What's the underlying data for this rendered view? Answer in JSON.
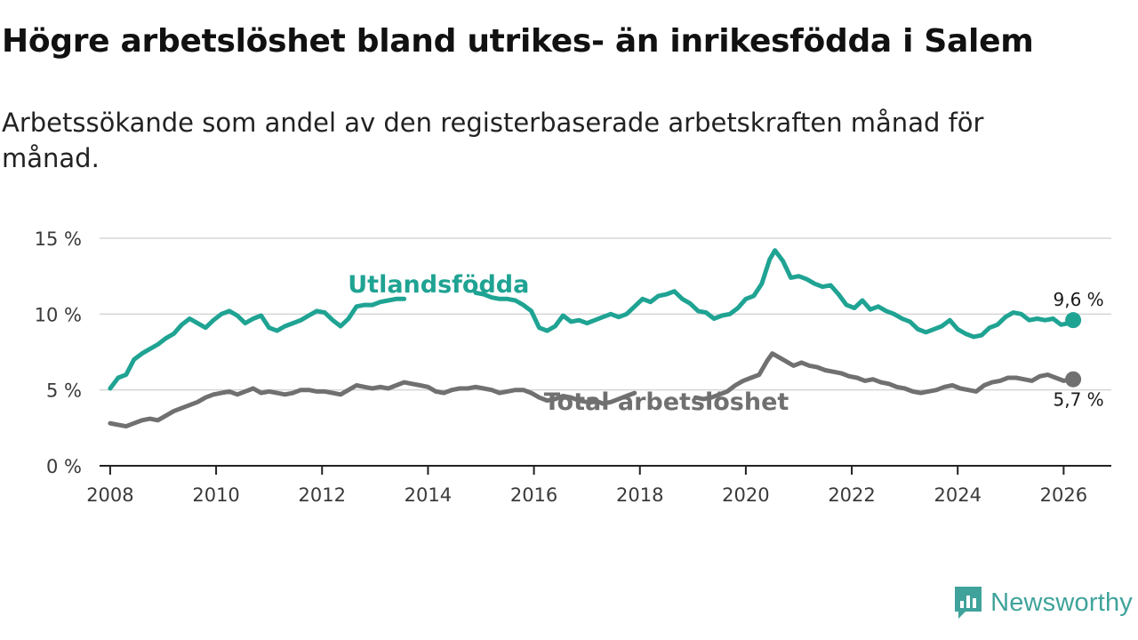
{
  "title": "Högre arbetslöshet bland utrikes- än inrikesfödda i Salem",
  "subtitle": "Arbetssökande som andel av den registerbaserade arbetskraften månad för månad.",
  "brand": {
    "name": "Newsworthy",
    "icon": "newsworthy-logo-icon",
    "color": "#3fa39b"
  },
  "chart_data": {
    "type": "line",
    "title": "Högre arbetslöshet bland utrikes- än inrikesfödda i Salem",
    "xlabel": "",
    "ylabel": "",
    "xlim": [
      2007.8,
      2026.9
    ],
    "ylim": [
      0,
      15
    ],
    "xticks": [
      2008,
      2010,
      2012,
      2014,
      2016,
      2018,
      2020,
      2022,
      2024,
      2026
    ],
    "xtick_labels": [
      "2008",
      "2010",
      "2012",
      "2014",
      "2016",
      "2018",
      "2020",
      "2022",
      "2024",
      "2026"
    ],
    "yticks": [
      0,
      5,
      10,
      15
    ],
    "ytick_labels": [
      "0 %",
      "5 %",
      "10 %",
      "15 %"
    ],
    "grid": "horizontal",
    "series": [
      {
        "name": "Utlandsfödda",
        "color": "#1fa393",
        "end_label": "9,6 %",
        "points": [
          [
            2008.0,
            5.1
          ],
          [
            2008.15,
            5.8
          ],
          [
            2008.3,
            6.0
          ],
          [
            2008.45,
            7.0
          ],
          [
            2008.6,
            7.4
          ],
          [
            2008.75,
            7.7
          ],
          [
            2008.9,
            8.0
          ],
          [
            2009.05,
            8.4
          ],
          [
            2009.2,
            8.7
          ],
          [
            2009.35,
            9.3
          ],
          [
            2009.5,
            9.7
          ],
          [
            2009.65,
            9.4
          ],
          [
            2009.8,
            9.1
          ],
          [
            2009.95,
            9.6
          ],
          [
            2010.1,
            10.0
          ],
          [
            2010.25,
            10.2
          ],
          [
            2010.4,
            9.9
          ],
          [
            2010.55,
            9.4
          ],
          [
            2010.7,
            9.7
          ],
          [
            2010.85,
            9.9
          ],
          [
            2011.0,
            9.1
          ],
          [
            2011.15,
            8.9
          ],
          [
            2011.3,
            9.2
          ],
          [
            2011.45,
            9.4
          ],
          [
            2011.6,
            9.6
          ],
          [
            2011.75,
            9.9
          ],
          [
            2011.9,
            10.2
          ],
          [
            2012.05,
            10.1
          ],
          [
            2012.2,
            9.6
          ],
          [
            2012.35,
            9.2
          ],
          [
            2012.5,
            9.7
          ],
          [
            2012.65,
            10.5
          ],
          [
            2012.8,
            10.6
          ],
          [
            2012.95,
            10.6
          ],
          [
            2013.1,
            10.8
          ],
          [
            2013.25,
            10.9
          ],
          [
            2013.4,
            11.0
          ],
          [
            2013.55,
            11.0
          ],
          [
            2014.9,
            11.4
          ],
          [
            2015.05,
            11.3
          ],
          [
            2015.2,
            11.1
          ],
          [
            2015.35,
            11.0
          ],
          [
            2015.5,
            11.0
          ],
          [
            2015.65,
            10.9
          ],
          [
            2015.8,
            10.6
          ],
          [
            2015.95,
            10.2
          ],
          [
            2016.1,
            9.1
          ],
          [
            2016.25,
            8.9
          ],
          [
            2016.4,
            9.2
          ],
          [
            2016.55,
            9.9
          ],
          [
            2016.7,
            9.5
          ],
          [
            2016.85,
            9.6
          ],
          [
            2017.0,
            9.4
          ],
          [
            2017.15,
            9.6
          ],
          [
            2017.3,
            9.8
          ],
          [
            2017.45,
            10.0
          ],
          [
            2017.6,
            9.8
          ],
          [
            2017.75,
            10.0
          ],
          [
            2017.9,
            10.5
          ],
          [
            2018.05,
            11.0
          ],
          [
            2018.2,
            10.8
          ],
          [
            2018.35,
            11.2
          ],
          [
            2018.5,
            11.3
          ],
          [
            2018.65,
            11.5
          ],
          [
            2018.8,
            11.0
          ],
          [
            2018.95,
            10.7
          ],
          [
            2019.1,
            10.2
          ],
          [
            2019.25,
            10.1
          ],
          [
            2019.4,
            9.7
          ],
          [
            2019.55,
            9.9
          ],
          [
            2019.7,
            10.0
          ],
          [
            2019.85,
            10.4
          ],
          [
            2020.0,
            11.0
          ],
          [
            2020.15,
            11.2
          ],
          [
            2020.3,
            12.0
          ],
          [
            2020.45,
            13.6
          ],
          [
            2020.55,
            14.2
          ],
          [
            2020.7,
            13.5
          ],
          [
            2020.85,
            12.4
          ],
          [
            2021.0,
            12.5
          ],
          [
            2021.15,
            12.3
          ],
          [
            2021.3,
            12.0
          ],
          [
            2021.45,
            11.8
          ],
          [
            2021.6,
            11.9
          ],
          [
            2021.75,
            11.3
          ],
          [
            2021.9,
            10.6
          ],
          [
            2022.05,
            10.4
          ],
          [
            2022.2,
            10.9
          ],
          [
            2022.35,
            10.3
          ],
          [
            2022.5,
            10.5
          ],
          [
            2022.65,
            10.2
          ],
          [
            2022.8,
            10.0
          ],
          [
            2022.95,
            9.7
          ],
          [
            2023.1,
            9.5
          ],
          [
            2023.25,
            9.0
          ],
          [
            2023.4,
            8.8
          ],
          [
            2023.55,
            9.0
          ],
          [
            2023.7,
            9.2
          ],
          [
            2023.85,
            9.6
          ],
          [
            2024.0,
            9.0
          ],
          [
            2024.15,
            8.7
          ],
          [
            2024.3,
            8.5
          ],
          [
            2024.45,
            8.6
          ],
          [
            2024.6,
            9.1
          ],
          [
            2024.75,
            9.3
          ],
          [
            2024.9,
            9.8
          ],
          [
            2025.05,
            10.1
          ],
          [
            2025.2,
            10.0
          ],
          [
            2025.35,
            9.6
          ],
          [
            2025.5,
            9.7
          ],
          [
            2025.65,
            9.6
          ],
          [
            2025.8,
            9.7
          ],
          [
            2025.95,
            9.3
          ],
          [
            2026.1,
            9.4
          ],
          [
            2026.18,
            9.6
          ]
        ]
      },
      {
        "name": "Total arbetslöshet",
        "color": "#707070",
        "end_label": "5,7 %",
        "points": [
          [
            2008.0,
            2.8
          ],
          [
            2008.15,
            2.7
          ],
          [
            2008.3,
            2.6
          ],
          [
            2008.45,
            2.8
          ],
          [
            2008.6,
            3.0
          ],
          [
            2008.75,
            3.1
          ],
          [
            2008.9,
            3.0
          ],
          [
            2009.05,
            3.3
          ],
          [
            2009.2,
            3.6
          ],
          [
            2009.35,
            3.8
          ],
          [
            2009.5,
            4.0
          ],
          [
            2009.65,
            4.2
          ],
          [
            2009.8,
            4.5
          ],
          [
            2009.95,
            4.7
          ],
          [
            2010.1,
            4.8
          ],
          [
            2010.25,
            4.9
          ],
          [
            2010.4,
            4.7
          ],
          [
            2010.55,
            4.9
          ],
          [
            2010.7,
            5.1
          ],
          [
            2010.85,
            4.8
          ],
          [
            2011.0,
            4.9
          ],
          [
            2011.15,
            4.8
          ],
          [
            2011.3,
            4.7
          ],
          [
            2011.45,
            4.8
          ],
          [
            2011.6,
            5.0
          ],
          [
            2011.75,
            5.0
          ],
          [
            2011.9,
            4.9
          ],
          [
            2012.05,
            4.9
          ],
          [
            2012.2,
            4.8
          ],
          [
            2012.35,
            4.7
          ],
          [
            2012.5,
            5.0
          ],
          [
            2012.65,
            5.3
          ],
          [
            2012.8,
            5.2
          ],
          [
            2012.95,
            5.1
          ],
          [
            2013.1,
            5.2
          ],
          [
            2013.25,
            5.1
          ],
          [
            2013.4,
            5.3
          ],
          [
            2013.55,
            5.5
          ],
          [
            2013.7,
            5.4
          ],
          [
            2013.85,
            5.3
          ],
          [
            2014.0,
            5.2
          ],
          [
            2014.15,
            4.9
          ],
          [
            2014.3,
            4.8
          ],
          [
            2014.45,
            5.0
          ],
          [
            2014.6,
            5.1
          ],
          [
            2014.75,
            5.1
          ],
          [
            2014.9,
            5.2
          ],
          [
            2015.05,
            5.1
          ],
          [
            2015.2,
            5.0
          ],
          [
            2015.35,
            4.8
          ],
          [
            2015.5,
            4.9
          ],
          [
            2015.65,
            5.0
          ],
          [
            2015.8,
            5.0
          ],
          [
            2015.95,
            4.8
          ],
          [
            2016.1,
            4.5
          ],
          [
            2016.25,
            4.3
          ],
          [
            2016.4,
            4.4
          ],
          [
            2016.55,
            4.6
          ],
          [
            2016.7,
            4.5
          ],
          [
            2016.85,
            4.3
          ],
          [
            2017.0,
            4.2
          ],
          [
            2017.15,
            4.3
          ],
          [
            2017.3,
            4.1
          ],
          [
            2017.45,
            4.2
          ],
          [
            2017.6,
            4.4
          ],
          [
            2017.75,
            4.6
          ],
          [
            2017.9,
            4.8
          ],
          [
            2019.05,
            4.5
          ],
          [
            2019.2,
            4.4
          ],
          [
            2019.35,
            4.5
          ],
          [
            2019.5,
            4.7
          ],
          [
            2019.65,
            4.9
          ],
          [
            2019.8,
            5.3
          ],
          [
            2019.95,
            5.6
          ],
          [
            2020.1,
            5.8
          ],
          [
            2020.25,
            6.0
          ],
          [
            2020.4,
            6.9
          ],
          [
            2020.5,
            7.4
          ],
          [
            2020.6,
            7.2
          ],
          [
            2020.75,
            6.9
          ],
          [
            2020.9,
            6.6
          ],
          [
            2021.05,
            6.8
          ],
          [
            2021.2,
            6.6
          ],
          [
            2021.35,
            6.5
          ],
          [
            2021.5,
            6.3
          ],
          [
            2021.65,
            6.2
          ],
          [
            2021.8,
            6.1
          ],
          [
            2021.95,
            5.9
          ],
          [
            2022.1,
            5.8
          ],
          [
            2022.25,
            5.6
          ],
          [
            2022.4,
            5.7
          ],
          [
            2022.55,
            5.5
          ],
          [
            2022.7,
            5.4
          ],
          [
            2022.85,
            5.2
          ],
          [
            2023.0,
            5.1
          ],
          [
            2023.15,
            4.9
          ],
          [
            2023.3,
            4.8
          ],
          [
            2023.45,
            4.9
          ],
          [
            2023.6,
            5.0
          ],
          [
            2023.75,
            5.2
          ],
          [
            2023.9,
            5.3
          ],
          [
            2024.05,
            5.1
          ],
          [
            2024.2,
            5.0
          ],
          [
            2024.35,
            4.9
          ],
          [
            2024.5,
            5.3
          ],
          [
            2024.65,
            5.5
          ],
          [
            2024.8,
            5.6
          ],
          [
            2024.95,
            5.8
          ],
          [
            2025.1,
            5.8
          ],
          [
            2025.25,
            5.7
          ],
          [
            2025.4,
            5.6
          ],
          [
            2025.55,
            5.9
          ],
          [
            2025.7,
            6.0
          ],
          [
            2025.85,
            5.8
          ],
          [
            2026.0,
            5.6
          ],
          [
            2026.18,
            5.7
          ]
        ]
      }
    ]
  }
}
